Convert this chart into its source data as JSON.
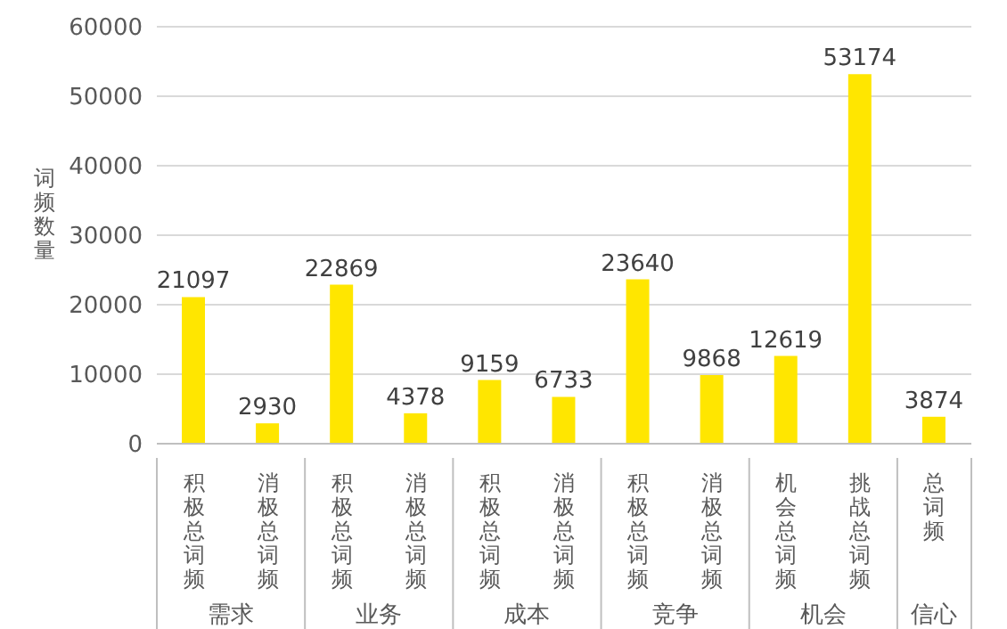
{
  "chart_data": {
    "type": "bar",
    "ylabel": "词频数量",
    "categories": [
      "积极总词频",
      "消极总词频",
      "积极总词频",
      "消极总词频",
      "积极总词频",
      "消极总词频",
      "积极总词频",
      "消极总词频",
      "机会总词频",
      "挑战总词频",
      "总词频"
    ],
    "values": [
      21097,
      2930,
      22869,
      4378,
      9159,
      6733,
      23640,
      9868,
      12619,
      53174,
      3874
    ],
    "color": "#ffe600",
    "ylim": [
      0,
      60000
    ],
    "yticks": [
      0,
      10000,
      20000,
      30000,
      40000,
      50000,
      60000
    ],
    "grid": "y",
    "data_labels": true,
    "legend": false,
    "annotations": [
      "需求",
      "业务",
      "成本",
      "竞争",
      "机会",
      "信心"
    ]
  }
}
